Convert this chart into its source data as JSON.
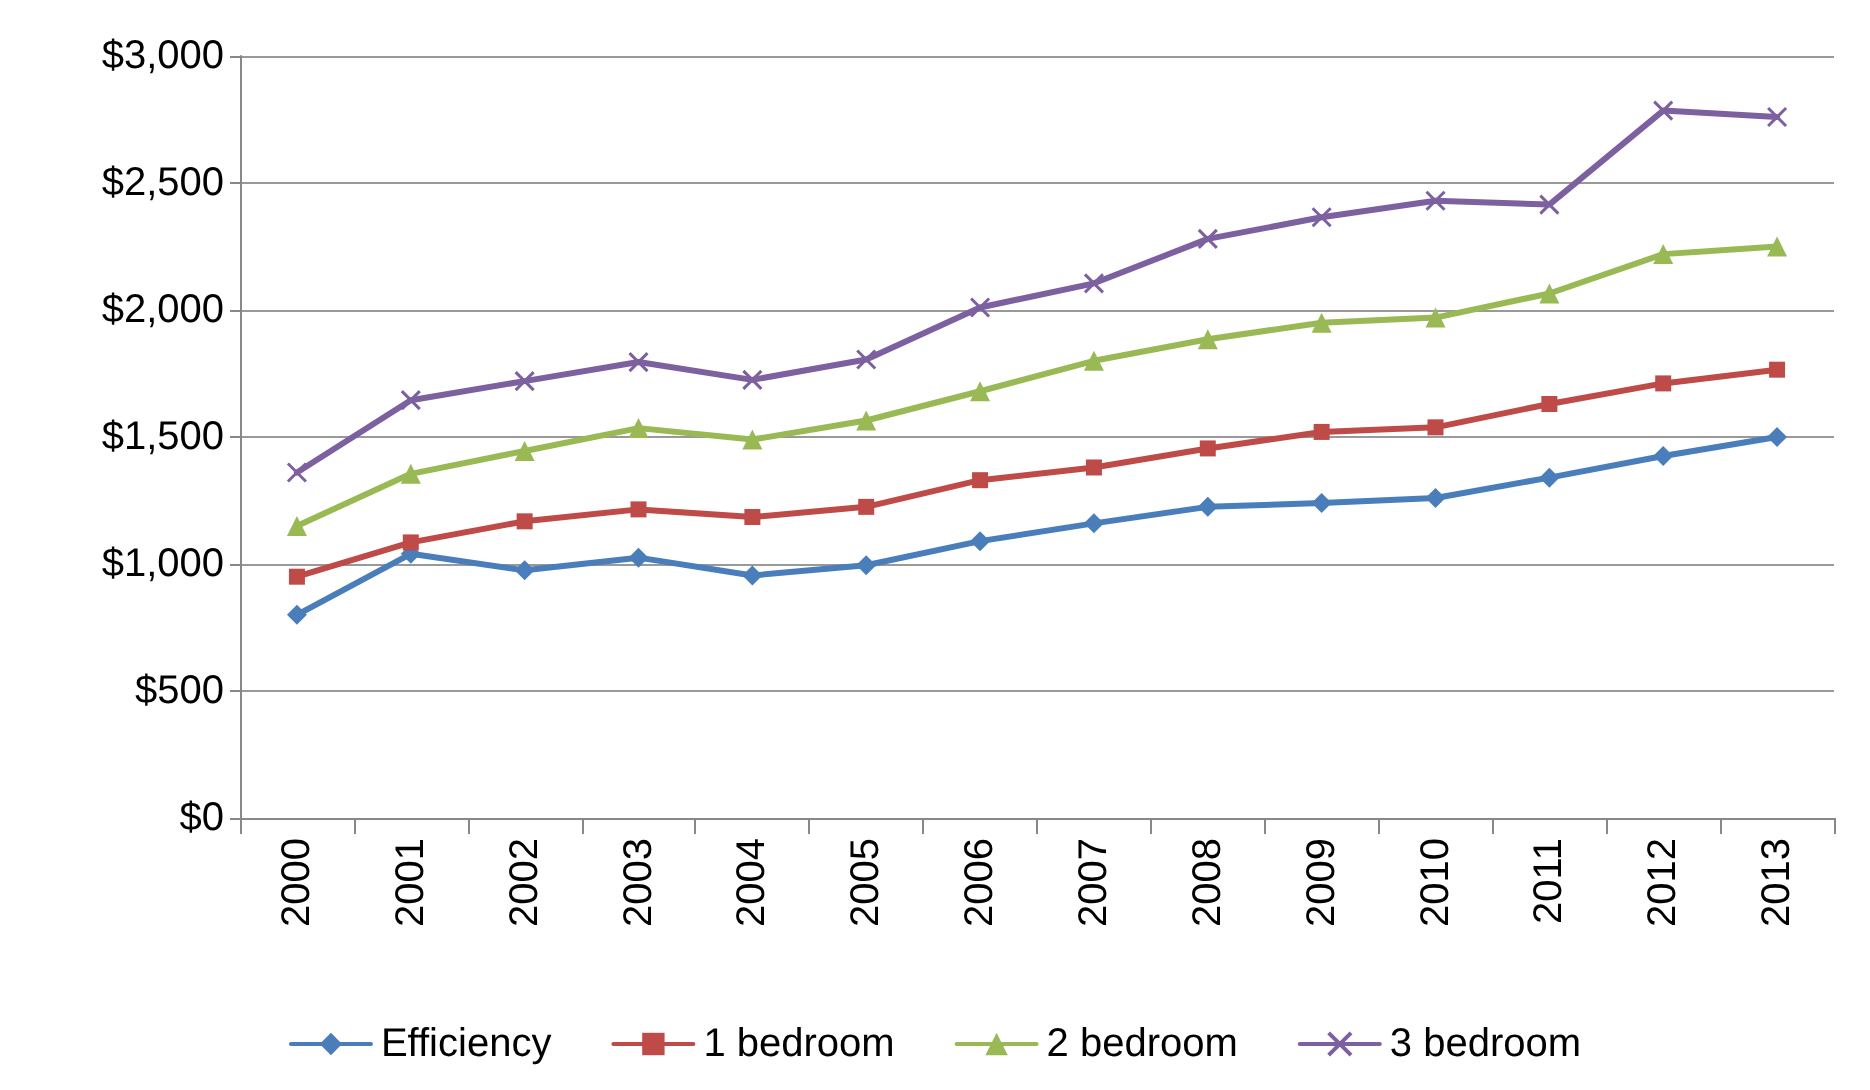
{
  "chart_data": {
    "type": "line",
    "categories": [
      "2000",
      "2001",
      "2002",
      "2003",
      "2004",
      "2005",
      "2006",
      "2007",
      "2008",
      "2009",
      "2010",
      "2011",
      "2012",
      "2013"
    ],
    "series": [
      {
        "name": "Efficiency",
        "color": "#4a7ebb",
        "marker": "diamond",
        "values": [
          800,
          1040,
          975,
          1025,
          955,
          995,
          1090,
          1160,
          1225,
          1240,
          1260,
          1340,
          1425,
          1500
        ]
      },
      {
        "name": "1 bedroom",
        "color": "#be4b48",
        "marker": "square",
        "values": [
          950,
          1085,
          1168,
          1215,
          1185,
          1225,
          1330,
          1380,
          1455,
          1520,
          1538,
          1630,
          1711,
          1765
        ]
      },
      {
        "name": "2 bedroom",
        "color": "#98b954",
        "marker": "triangle",
        "values": [
          1150,
          1355,
          1445,
          1535,
          1490,
          1565,
          1680,
          1800,
          1885,
          1950,
          1970,
          2065,
          2220,
          2250
        ]
      },
      {
        "name": "3 bedroom",
        "color": "#7d60a0",
        "marker": "cross",
        "values": [
          1360,
          1645,
          1720,
          1795,
          1725,
          1805,
          2010,
          2105,
          2280,
          2365,
          2430,
          2415,
          2785,
          2760
        ]
      }
    ],
    "ylim": [
      0,
      3000
    ],
    "yticks": [
      {
        "value": 0,
        "label": "$0"
      },
      {
        "value": 500,
        "label": "$500"
      },
      {
        "value": 1000,
        "label": "$1,000"
      },
      {
        "value": 1500,
        "label": "$1,500"
      },
      {
        "value": 2000,
        "label": "$2,000"
      },
      {
        "value": 2500,
        "label": "$2,500"
      },
      {
        "value": 3000,
        "label": "$3,000"
      }
    ],
    "grid": "y",
    "legend": "bottom",
    "line_style": "solid"
  }
}
